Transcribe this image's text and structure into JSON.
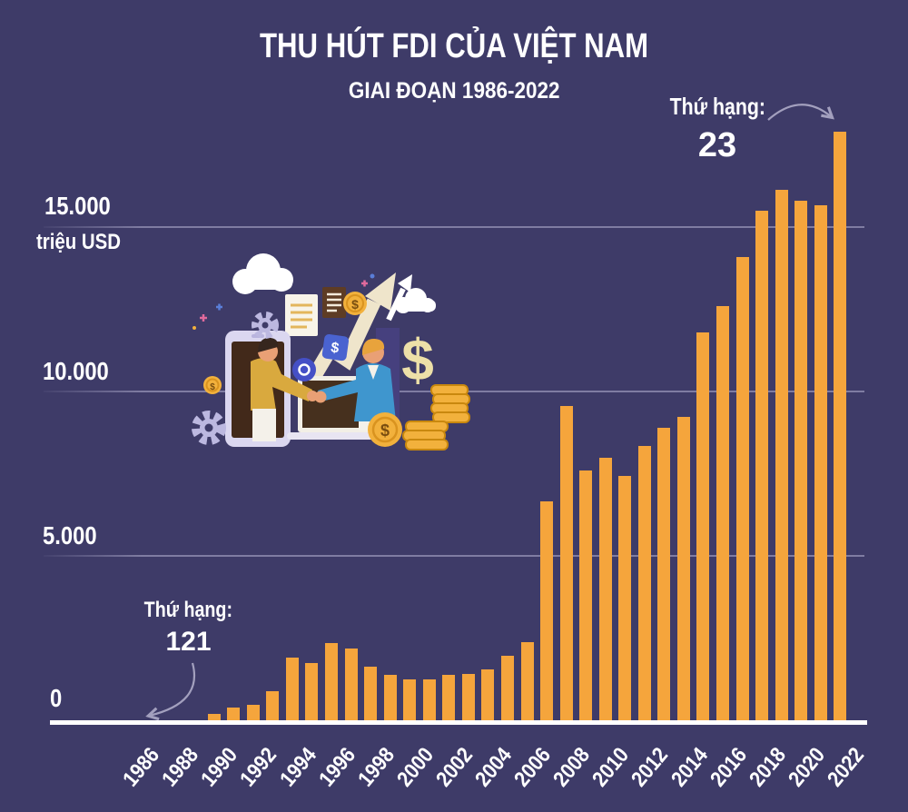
{
  "page": {
    "background_color": "#3E3B68"
  },
  "header": {
    "title": "THU HÚT FDI CỦA VIỆT NAM",
    "subtitle": "GIAI ĐOẠN 1986-2022"
  },
  "colors": {
    "background": "#3E3B68",
    "bar": "#F5A53C",
    "text": "#FFFFFF",
    "gridline": "#B5B2D2",
    "baseline": "#FFFFFF",
    "arrow": "#A3A0BE"
  },
  "y_axis": {
    "unit_label": "triệu USD",
    "ticks": [
      {
        "label": "15.000",
        "value": 15000
      },
      {
        "label": "10.000",
        "value": 10000
      },
      {
        "label": "5.000",
        "value": 5000
      },
      {
        "label": "0",
        "value": 0
      }
    ]
  },
  "annotations": {
    "top": {
      "label": "Thứ hạng:",
      "value": "23",
      "points_to_year": "2022"
    },
    "bottom": {
      "label": "Thứ hạng:",
      "value": "121",
      "points_to_year": "1986"
    }
  },
  "illustration": {
    "dollar_sign": "$",
    "icons": [
      "cloud",
      "growth-arrow",
      "document",
      "gear",
      "coin",
      "dollar-sign",
      "smartphone",
      "laptop",
      "handshake",
      "bar-chart"
    ]
  },
  "chart_data": {
    "type": "bar",
    "title": "THU HÚT FDI CỦA VIỆT NAM",
    "subtitle": "GIAI ĐOẠN 1986-2022",
    "xlabel": "",
    "ylabel": "triệu USD",
    "ylim": [
      0,
      18600
    ],
    "grid": true,
    "categories": [
      1986,
      1987,
      1988,
      1989,
      1990,
      1991,
      1992,
      1993,
      1994,
      1995,
      1996,
      1997,
      1998,
      1999,
      2000,
      2001,
      2002,
      2003,
      2004,
      2005,
      2006,
      2007,
      2008,
      2009,
      2010,
      2011,
      2012,
      2013,
      2014,
      2015,
      2016,
      2017,
      2018,
      2019,
      2020,
      2021,
      2022
    ],
    "values": [
      0,
      0,
      0,
      0,
      190,
      380,
      470,
      890,
      1900,
      1730,
      2360,
      2180,
      1620,
      1390,
      1230,
      1230,
      1370,
      1420,
      1560,
      1950,
      2370,
      6650,
      9570,
      7590,
      7980,
      7420,
      8340,
      8900,
      9220,
      11800,
      12590,
      14100,
      15510,
      16130,
      15810,
      15660,
      17900
    ],
    "x_tick_labels": [
      "1986",
      "1988",
      "1990",
      "1992",
      "1994",
      "1996",
      "1998",
      "2000",
      "2002",
      "2004",
      "2006",
      "2008",
      "2010",
      "2012",
      "2014",
      "2016",
      "2018",
      "2020",
      "2022"
    ]
  }
}
